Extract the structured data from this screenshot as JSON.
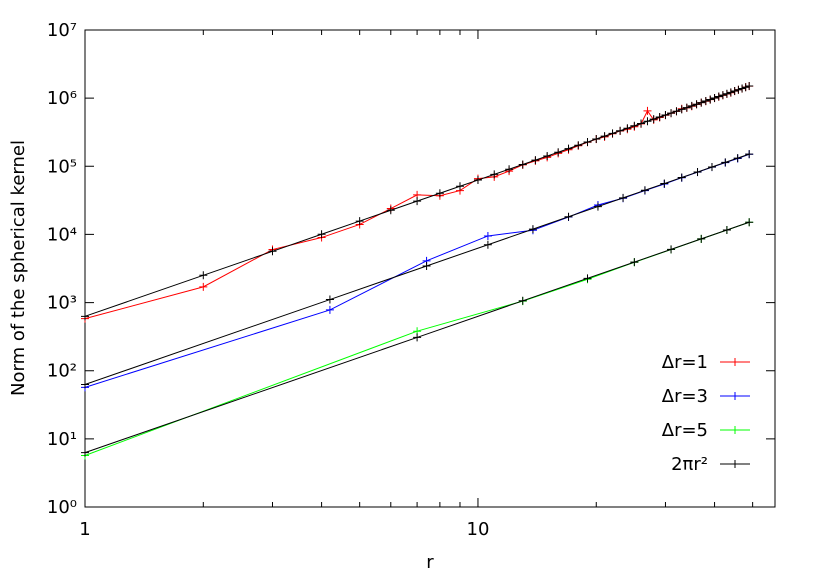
{
  "chart_data": {
    "type": "line",
    "x_label": "r",
    "y_label": "Norm of the spherical kernel",
    "log_x": true,
    "log_y": true,
    "xlim": [
      1,
      57
    ],
    "ylim": [
      1,
      10000000
    ],
    "xticks": [
      1,
      10
    ],
    "xminor": [
      2,
      3,
      4,
      5,
      6,
      7,
      8,
      9,
      20,
      30,
      40,
      50
    ],
    "yticks": [
      {
        "value": 1,
        "label": "10⁰"
      },
      {
        "value": 10,
        "label": "10¹"
      },
      {
        "value": 100,
        "label": "10²"
      },
      {
        "value": 1000,
        "label": "10³"
      },
      {
        "value": 10000,
        "label": "10⁴"
      },
      {
        "value": 100000,
        "label": "10⁵"
      },
      {
        "value": 1000000,
        "label": "10⁶"
      },
      {
        "value": 10000000,
        "label": "10⁷"
      }
    ],
    "legend": "lower right",
    "series": [
      {
        "name": "Δr=1",
        "color": "#ff0000",
        "x": [
          1,
          2,
          3,
          4,
          5,
          6,
          7,
          8,
          9,
          10,
          11,
          12,
          13,
          14,
          15,
          16,
          17,
          18,
          19,
          20,
          21,
          22,
          23,
          24,
          25,
          26,
          27,
          28,
          29,
          30,
          31,
          32,
          33,
          34,
          35,
          36,
          37,
          38,
          39,
          40,
          41,
          42,
          43,
          44,
          45,
          46,
          47,
          48,
          49
        ],
        "values": [
          581,
          1700,
          6000,
          9000,
          14000,
          24000,
          38000,
          37000,
          44000,
          66000,
          70000,
          85000,
          105000,
          120000,
          135000,
          155000,
          175000,
          200000,
          225000,
          250000,
          270000,
          300000,
          330000,
          350000,
          380000,
          420000,
          650000,
          480000,
          520000,
          560000,
          600000,
          640000,
          700000,
          720000,
          760000,
          810000,
          860000,
          900000,
          950000,
          1000000,
          1050000,
          1100000,
          1150000,
          1200000,
          1270000,
          1330000,
          1380000,
          1450000,
          1500000
        ]
      },
      {
        "name": "Δr=3",
        "color": "#0000ff",
        "x": [
          1,
          4.2,
          7.4,
          10.6,
          13.8,
          17,
          20.2,
          23.4,
          26.6,
          29.8,
          33,
          36.2,
          39.4,
          42.6,
          45.8,
          49
        ],
        "values": [
          57,
          780,
          4100,
          9500,
          11500,
          18000,
          27000,
          34000,
          44000,
          55000,
          68000,
          82000,
          97000,
          113000,
          130000,
          150000
        ]
      },
      {
        "name": "Δr=5",
        "color": "#00ff00",
        "x": [
          1,
          7,
          13,
          19,
          25,
          31,
          37,
          43,
          49
        ],
        "values": [
          5.7,
          380,
          1050,
          2200,
          3900,
          6000,
          8600,
          11600,
          15100
        ]
      },
      {
        "name": "2πr²",
        "color": "#000000",
        "x": [
          1,
          2,
          3,
          4,
          5,
          6,
          7,
          8,
          9,
          10,
          11,
          12,
          13,
          14,
          15,
          16,
          17,
          18,
          19,
          20,
          21,
          22,
          23,
          24,
          25,
          26,
          27,
          28,
          29,
          30,
          31,
          32,
          33,
          34,
          35,
          36,
          37,
          38,
          39,
          40,
          41,
          42,
          43,
          44,
          45,
          46,
          47,
          48,
          49,
          null,
          1,
          4.2,
          7.4,
          10.6,
          13.8,
          17,
          20.2,
          23.4,
          26.6,
          29.8,
          33,
          36.2,
          39.4,
          42.6,
          45.8,
          49,
          null,
          1,
          7,
          13,
          19,
          25,
          31,
          37,
          43,
          49
        ],
        "values": [
          628,
          2513,
          5655,
          10053,
          15708,
          22619,
          30788,
          40212,
          50894,
          62832,
          76027,
          90478,
          106186,
          123150,
          141372,
          160850,
          181584,
          203575,
          226823,
          251327,
          277088,
          304106,
          332381,
          361911,
          392699,
          424743,
          458044,
          492602,
          528416,
          565487,
          603814,
          643398,
          684239,
          726336,
          769690,
          814301,
          860168,
          907292,
          955672,
          1005310,
          1056204,
          1108354,
          1161761,
          1216425,
          1272345,
          1329522,
          1387956,
          1447646,
          1508593,
          null,
          62.8,
          1108,
          3441,
          7060,
          11966,
          18158,
          25637,
          34403,
          44455,
          55795,
          68421,
          82334,
          97533,
          114019,
          131792,
          150852,
          null,
          6.28,
          308,
          1062,
          2268,
          3927,
          6038,
          8603,
          11617,
          15085
        ]
      }
    ]
  }
}
